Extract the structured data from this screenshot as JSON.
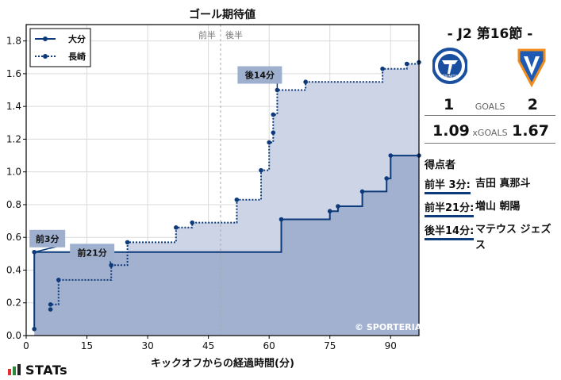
{
  "chart_data": {
    "type": "line",
    "title": "ゴール期待値",
    "xlabel": "キックオフからの経過時間(分)",
    "ylabel": "",
    "xlim": [
      0,
      97
    ],
    "ylim": [
      0,
      1.9
    ],
    "x_ticks": [
      0,
      15,
      30,
      45,
      60,
      75,
      90
    ],
    "y_ticks": [
      0.0,
      0.2,
      0.4,
      0.6,
      0.8,
      1.0,
      1.2,
      1.4,
      1.6,
      1.8
    ],
    "half_line": 48,
    "half_labels": [
      "前半",
      "後半"
    ],
    "series": [
      {
        "name": "大分",
        "style": "solid",
        "color": "#0d3a7a",
        "points": [
          [
            2,
            0.04
          ],
          [
            2,
            0.51
          ],
          [
            21,
            0.51
          ],
          [
            63,
            0.71
          ],
          [
            75,
            0.76
          ],
          [
            77,
            0.79
          ],
          [
            83,
            0.88
          ],
          [
            89,
            0.96
          ],
          [
            90,
            1.1
          ],
          [
            97,
            1.1
          ]
        ]
      },
      {
        "name": "長崎",
        "style": "dotted",
        "color": "#0d3a7a",
        "points": [
          [
            6,
            0.16
          ],
          [
            6,
            0.19
          ],
          [
            8,
            0.34
          ],
          [
            21,
            0.43
          ],
          [
            25,
            0.57
          ],
          [
            37,
            0.66
          ],
          [
            41,
            0.69
          ],
          [
            52,
            0.83
          ],
          [
            58,
            1.01
          ],
          [
            60,
            1.18
          ],
          [
            61,
            1.24
          ],
          [
            61,
            1.35
          ],
          [
            62,
            1.5
          ],
          [
            69,
            1.55
          ],
          [
            88,
            1.63
          ],
          [
            94,
            1.66
          ],
          [
            97,
            1.67
          ]
        ]
      }
    ],
    "annotations": [
      {
        "label": "前3分",
        "x": 2,
        "y": 0.51
      },
      {
        "label": "前21分",
        "x": 21,
        "y": 0.43
      },
      {
        "label": "後14分",
        "x": 62,
        "y": 1.5
      }
    ],
    "legend": "top-left"
  },
  "copyright": "© SPORTERIA",
  "branding": "STATs",
  "match": {
    "title": "-  J2 第16節  -",
    "home_team": "大分",
    "away_team": "長崎",
    "home_color": "#1a4fa0",
    "away_color": "#1e5ab4",
    "home_goals": "1",
    "away_goals": "2",
    "goals_label": "GOALS",
    "home_xg": "1.09",
    "away_xg": "1.67",
    "xg_label": "xGOALS",
    "home_logo_text": "TRINITA"
  },
  "scorers": {
    "title": "得点者",
    "items": [
      {
        "time": "前半  3分:",
        "name": "吉田  真那斗"
      },
      {
        "time": "前半21分:",
        "name": "増山  朝陽"
      },
      {
        "time": "後半14分:",
        "name": "マテウス ジェズス"
      }
    ]
  }
}
